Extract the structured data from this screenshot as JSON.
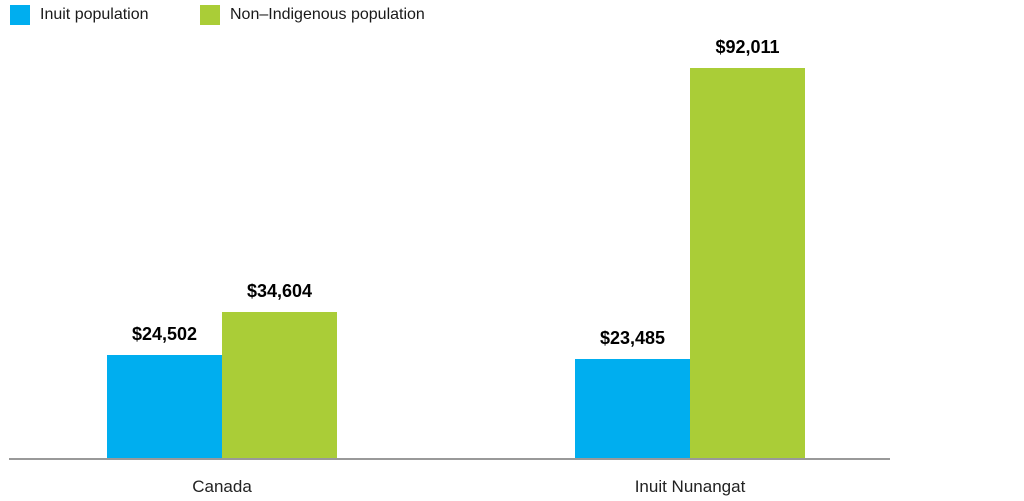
{
  "legend": {
    "items": [
      {
        "label": "Inuit population",
        "color": "#00AEEF"
      },
      {
        "label": "Non–Indigenous population",
        "color": "#AACD37"
      }
    ]
  },
  "chart_data": {
    "type": "bar",
    "title": "",
    "xlabel": "",
    "ylabel": "",
    "categories": [
      "Canada",
      "Inuit Nunangat"
    ],
    "series": [
      {
        "name": "Inuit population",
        "color": "#00AEEF",
        "values": [
          24502,
          23485
        ],
        "value_labels": [
          "$24,502",
          "$23,485"
        ]
      },
      {
        "name": "Non–Indigenous population",
        "color": "#AACD37",
        "values": [
          34604,
          92011
        ],
        "value_labels": [
          "$34,604",
          "$92,011"
        ]
      }
    ],
    "ylim": [
      0,
      92011
    ],
    "grid": false,
    "y_axis_visible": false,
    "legend_position": "top-left",
    "axis_color": "#999999"
  }
}
